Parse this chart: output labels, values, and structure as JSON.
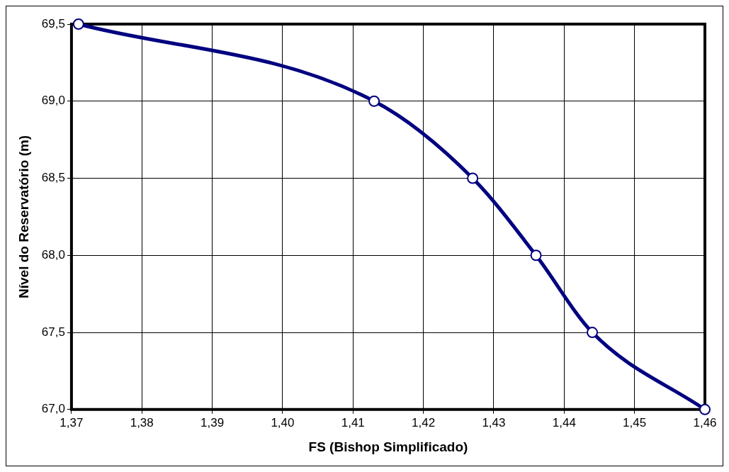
{
  "chart_data": {
    "type": "line",
    "xlabel": "FS (Bishop Simplificado)",
    "ylabel": "Nível do Reservatório (m)",
    "x": [
      1.371,
      1.413,
      1.427,
      1.436,
      1.444,
      1.46
    ],
    "series": [
      {
        "color": "#000080",
        "values": [
          69.5,
          69.0,
          68.5,
          68.0,
          67.5,
          67.0
        ]
      }
    ],
    "xlim": [
      1.37,
      1.46
    ],
    "xticks": [
      {
        "value": 1.37,
        "label": "1,37"
      },
      {
        "value": 1.38,
        "label": "1,38"
      },
      {
        "value": 1.39,
        "label": "1,39"
      },
      {
        "value": 1.4,
        "label": "1,40"
      },
      {
        "value": 1.41,
        "label": "1,41"
      },
      {
        "value": 1.42,
        "label": "1,42"
      },
      {
        "value": 1.43,
        "label": "1,43"
      },
      {
        "value": 1.44,
        "label": "1,44"
      },
      {
        "value": 1.45,
        "label": "1,45"
      },
      {
        "value": 1.46,
        "label": "1,46"
      }
    ],
    "ylim": [
      67.0,
      69.5
    ],
    "yticks": [
      {
        "value": 67.0,
        "label": "67,0"
      },
      {
        "value": 67.5,
        "label": "67,5"
      },
      {
        "value": 68.0,
        "label": "68,0"
      },
      {
        "value": 68.5,
        "label": "68,5"
      },
      {
        "value": 69.0,
        "label": "69,0"
      },
      {
        "value": 69.5,
        "label": "69,5"
      }
    ],
    "grid": true,
    "marker": "circle",
    "line_style": "solid",
    "legend": false
  }
}
